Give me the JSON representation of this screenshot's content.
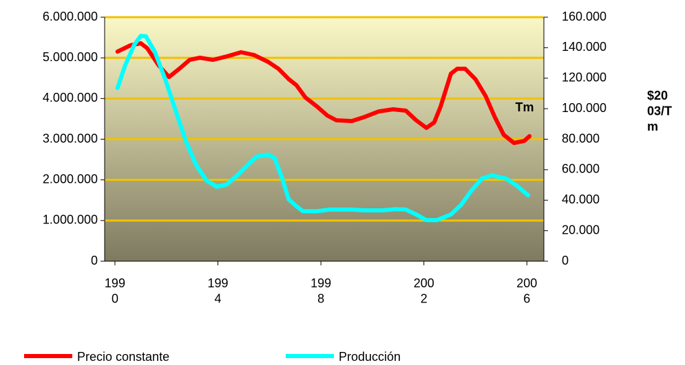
{
  "chart_data": {
    "type": "line",
    "y_label": "Tm",
    "y2_label": "$2003/Tm",
    "xlim": [
      1989.6,
      2006.66
    ],
    "xticks": [
      1990,
      1994,
      1998,
      2002,
      2006
    ],
    "ylim": [
      0,
      6000000
    ],
    "yticks": [
      {
        "value": 0,
        "label": "0"
      },
      {
        "value": 1000000,
        "label": "1.000.000"
      },
      {
        "value": 2000000,
        "label": "2.000.000"
      },
      {
        "value": 3000000,
        "label": "3.000.000"
      },
      {
        "value": 4000000,
        "label": "4.000.000"
      },
      {
        "value": 5000000,
        "label": "5.000.000"
      },
      {
        "value": 6000000,
        "label": "6.000.000"
      }
    ],
    "y2lim": [
      0,
      160000
    ],
    "y2ticks": [
      {
        "value": 0,
        "label": "0"
      },
      {
        "value": 20000,
        "label": "20.000"
      },
      {
        "value": 40000,
        "label": "40.000"
      },
      {
        "value": 60000,
        "label": "60.000"
      },
      {
        "value": 80000,
        "label": "80.000"
      },
      {
        "value": 100000,
        "label": "100.000"
      },
      {
        "value": 120000,
        "label": "120.000"
      },
      {
        "value": 140000,
        "label": "140.000"
      },
      {
        "value": 160000,
        "label": "160.000"
      }
    ],
    "grid": true,
    "legend": "bottom",
    "series": [
      {
        "name": "Precio constante",
        "color": "#ff0000",
        "axis": "y2",
        "x": [
          1990.1,
          1990.6,
          1991.0,
          1991.25,
          1991.7,
          1992.1,
          1992.5,
          1992.9,
          1993.3,
          1993.8,
          1994.35,
          1994.9,
          1995.4,
          1995.95,
          1996.35,
          1996.75,
          1997.05,
          1997.4,
          1997.85,
          1998.25,
          1998.6,
          1999.2,
          1999.7,
          2000.25,
          2000.8,
          2001.3,
          2001.7,
          2002.1,
          2002.4,
          2002.65,
          2003.05,
          2003.3,
          2003.6,
          2004.0,
          2004.4,
          2004.75,
          2005.1,
          2005.5,
          2005.9,
          2006.1
        ],
        "values": [
          137400,
          141500,
          142900,
          139700,
          128400,
          120800,
          126200,
          132000,
          133400,
          132000,
          134300,
          137000,
          135200,
          130700,
          126200,
          119400,
          115400,
          107300,
          101400,
          95500,
          92400,
          91900,
          94600,
          98200,
          99600,
          98700,
          92400,
          87400,
          91000,
          101400,
          123000,
          126200,
          126200,
          119400,
          108200,
          94600,
          82900,
          77500,
          78900,
          82000
        ]
      },
      {
        "name": "Producción",
        "color": "#00ffff",
        "x": [
          1990.1,
          1990.4,
          1990.75,
          1991.0,
          1991.2,
          1991.55,
          1991.95,
          1992.35,
          1992.75,
          1993.15,
          1993.55,
          1993.95,
          1994.35,
          1994.75,
          1995.15,
          1995.5,
          1995.95,
          1996.2,
          1996.5,
          1996.75,
          1997.05,
          1997.3,
          1997.85,
          1998.35,
          1999.2,
          1999.7,
          2000.4,
          2000.9,
          2001.3,
          2001.7,
          2002.1,
          2002.5,
          2003.05,
          2003.45,
          2003.85,
          2004.25,
          2004.65,
          2005.2,
          2005.6,
          2006.05
        ],
        "values": [
          4260000,
          4820000,
          5320000,
          5540000,
          5530000,
          5150000,
          4480000,
          3720000,
          2960000,
          2370000,
          1990000,
          1830000,
          1890000,
          2110000,
          2370000,
          2570000,
          2620000,
          2540000,
          2030000,
          1520000,
          1350000,
          1230000,
          1230000,
          1270000,
          1270000,
          1250000,
          1250000,
          1280000,
          1270000,
          1150000,
          1010000,
          1010000,
          1150000,
          1390000,
          1740000,
          2030000,
          2110000,
          2030000,
          1860000,
          1620000
        ]
      }
    ]
  }
}
